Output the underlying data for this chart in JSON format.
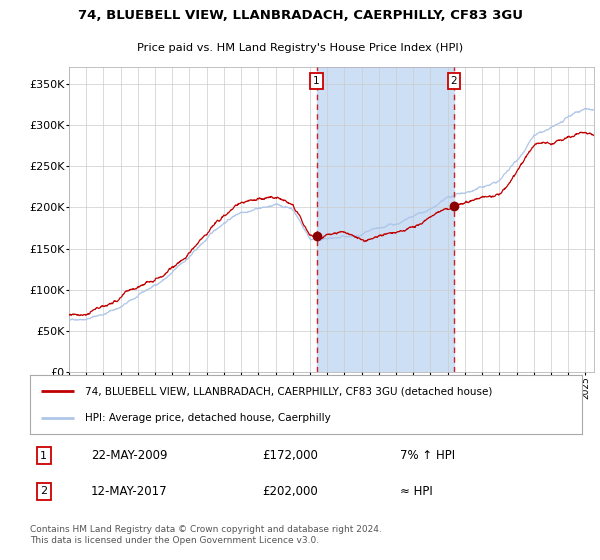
{
  "title": "74, BLUEBELL VIEW, LLANBRADACH, CAERPHILLY, CF83 3GU",
  "subtitle": "Price paid vs. HM Land Registry's House Price Index (HPI)",
  "ylabel_ticks": [
    "£0",
    "£50K",
    "£100K",
    "£150K",
    "£200K",
    "£250K",
    "£300K",
    "£350K"
  ],
  "ytick_values": [
    0,
    50000,
    100000,
    150000,
    200000,
    250000,
    300000,
    350000
  ],
  "ylim": [
    0,
    370000
  ],
  "xlim_start": 1995.0,
  "xlim_end": 2025.5,
  "sale1_date": 2009.385,
  "sale1_price": 172000,
  "sale1_label": "1",
  "sale1_text": "22-MAY-2009",
  "sale1_price_text": "£172,000",
  "sale1_hpi_text": "7% ↑ HPI",
  "sale2_date": 2017.36,
  "sale2_price": 202000,
  "sale2_label": "2",
  "sale2_text": "12-MAY-2017",
  "sale2_price_text": "£202,000",
  "sale2_hpi_text": "≈ HPI",
  "hpi_line_color": "#aec6e8",
  "price_line_color": "#c00000",
  "background_color": "#ffffff",
  "plot_bg_color": "#ffffff",
  "shade_color": "#ccdff5",
  "grid_color": "#cccccc",
  "legend_label1": "74, BLUEBELL VIEW, LLANBRADACH, CAERPHILLY, CF83 3GU (detached house)",
  "legend_label2": "HPI: Average price, detached house, Caerphilly",
  "footer": "Contains HM Land Registry data © Crown copyright and database right 2024.\nThis data is licensed under the Open Government Licence v3.0."
}
